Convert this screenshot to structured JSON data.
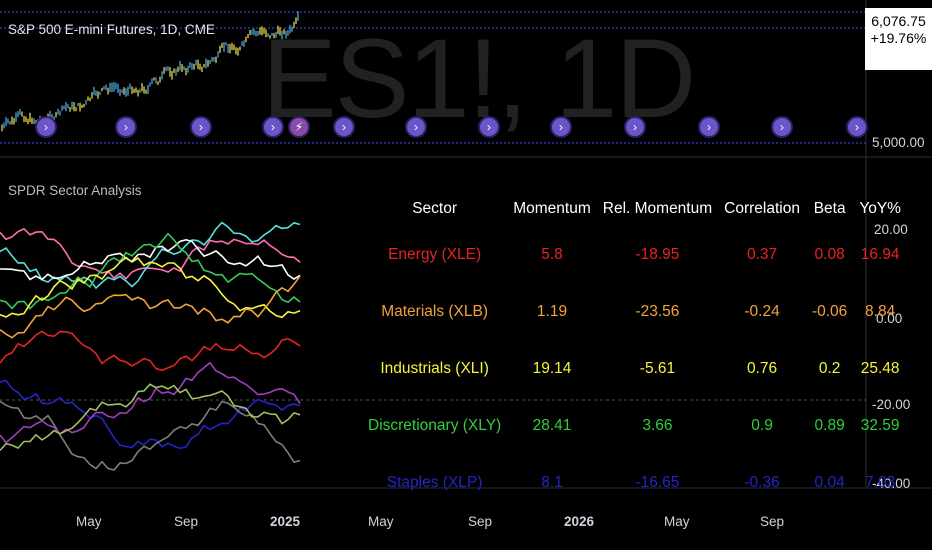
{
  "symbol_title": "S&P 500 E-mini Futures, 1D, CME",
  "watermark": "ES1!, 1D",
  "price": {
    "last": "6,076.75",
    "change": "+19.76%"
  },
  "price_axis": {
    "level": "5,000.00"
  },
  "indicator": {
    "title": "SPDR Sector Analysis"
  },
  "indicator_axis": {
    "labels": [
      "20.00",
      "0.00",
      "-20.00",
      "-40.00"
    ]
  },
  "time_axis": {
    "labels": [
      "May",
      "Sep",
      "2025",
      "May",
      "Sep",
      "2026",
      "May",
      "Sep"
    ]
  },
  "table": {
    "headers": [
      "Sector",
      "Momentum",
      "Rel. Momentum",
      "Correlation",
      "Beta",
      "YoY%"
    ],
    "rows": [
      {
        "sector": "Energy (XLE)",
        "momentum": "5.8",
        "rel_momentum": "-18.95",
        "correlation": "0.37",
        "beta": "0.08",
        "yoy": "16.94",
        "color": "#e52424"
      },
      {
        "sector": "Materials (XLB)",
        "momentum": "1.19",
        "rel_momentum": "-23.56",
        "correlation": "-0.24",
        "beta": "-0.06",
        "yoy": "8.84",
        "color": "#f2a33a"
      },
      {
        "sector": "Industrials (XLI)",
        "momentum": "19.14",
        "rel_momentum": "-5.61",
        "correlation": "0.76",
        "beta": "0.2",
        "yoy": "25.48",
        "color": "#f7f53b"
      },
      {
        "sector": "Discretionary (XLY)",
        "momentum": "28.41",
        "rel_momentum": "3.66",
        "correlation": "0.9",
        "beta": "0.89",
        "yoy": "32.59",
        "color": "#2ed13c"
      },
      {
        "sector": "Staples (XLP)",
        "momentum": "8.1",
        "rel_momentum": "-16.65",
        "correlation": "-0.36",
        "beta": "0.04",
        "yoy": "7.03",
        "color": "#2424c8"
      }
    ]
  },
  "chart_data": {
    "type": "line",
    "price_panel": {
      "series_name": "",
      "y_label_visible": "5,000.00",
      "last_value": "6,076.75"
    },
    "indicator_panel": {
      "y_ticks": [
        20,
        0,
        -20,
        -40
      ]
    },
    "colors": {
      "bars_up": "#4aa3df",
      "bars_down": "#e8d34a",
      "event_icon": "#6a55c9",
      "grid_dotted": "#3d4cff"
    }
  }
}
